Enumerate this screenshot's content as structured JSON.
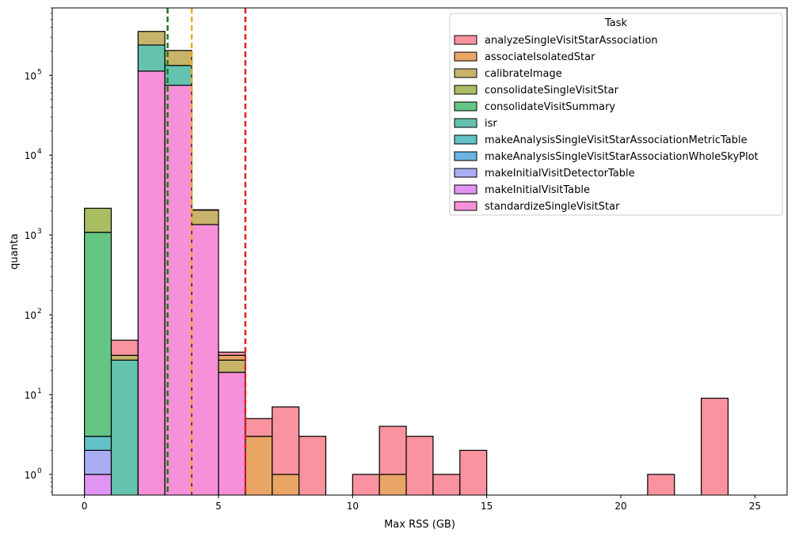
{
  "chart_data": {
    "type": "bar",
    "subtype": "stacked-histogram",
    "xlabel": "Max RSS (GB)",
    "ylabel": "quanta",
    "yscale": "log",
    "xlim": [
      -1.2,
      26.2
    ],
    "ylim": [
      0.55,
      700000
    ],
    "bin_width": 1,
    "x_ticks": [
      0,
      5,
      10,
      15,
      20,
      25
    ],
    "y_ticks": [
      {
        "value": 1,
        "label": "10",
        "exp": "0"
      },
      {
        "value": 10,
        "label": "10",
        "exp": "1"
      },
      {
        "value": 100,
        "label": "10",
        "exp": "2"
      },
      {
        "value": 1000,
        "label": "10",
        "exp": "3"
      },
      {
        "value": 10000,
        "label": "10",
        "exp": "4"
      },
      {
        "value": 100000,
        "label": "10",
        "exp": "5"
      }
    ],
    "legend": {
      "title": "Task",
      "placement": "top-right"
    },
    "series": [
      {
        "name": "analyzeSingleVisitStarAssociation",
        "color": "#f8939f"
      },
      {
        "name": "associateIsolatedStar",
        "color": "#e8a566"
      },
      {
        "name": "calibrateImage",
        "color": "#c8b36a"
      },
      {
        "name": "consolidateSingleVisitStar",
        "color": "#a9bd62"
      },
      {
        "name": "consolidateVisitSummary",
        "color": "#64c682"
      },
      {
        "name": "isr",
        "color": "#64c2ae"
      },
      {
        "name": "makeAnalysisSingleVisitStarAssociationMetricTable",
        "color": "#64c1c5"
      },
      {
        "name": "makeAnalysisSingleVisitStarAssociationWholeSkyPlot",
        "color": "#6cb4e3"
      },
      {
        "name": "makeInitialVisitDetectorTable",
        "color": "#a9aef4"
      },
      {
        "name": "makeInitialVisitTable",
        "color": "#e195f3"
      },
      {
        "name": "standardizeSingleVisitStar",
        "color": "#f790d8"
      }
    ],
    "stacks": [
      {
        "x0": 0,
        "segments": [
          {
            "series": "makeInitialVisitTable",
            "value": 1
          },
          {
            "series": "makeInitialVisitDetectorTable",
            "value": 1
          },
          {
            "series": "makeAnalysisSingleVisitStarAssociationMetricTable",
            "value": 1
          },
          {
            "series": "consolidateVisitSummary",
            "value": 1077
          },
          {
            "series": "consolidateSingleVisitStar",
            "value": 1080
          }
        ]
      },
      {
        "x0": 1,
        "segments": [
          {
            "series": "isr",
            "value": 27
          },
          {
            "series": "associateIsolatedStar",
            "value": 0
          },
          {
            "series": "calibrateImage",
            "value": 4
          },
          {
            "series": "analyzeSingleVisitStarAssociation",
            "value": 17
          }
        ]
      },
      {
        "x0": 2,
        "segments": [
          {
            "series": "standardizeSingleVisitStar",
            "value": 113000
          },
          {
            "series": "isr",
            "value": 127000
          },
          {
            "series": "calibrateImage",
            "value": 115000
          }
        ]
      },
      {
        "x0": 3,
        "segments": [
          {
            "series": "standardizeSingleVisitStar",
            "value": 75000
          },
          {
            "series": "isr",
            "value": 58000
          },
          {
            "series": "calibrateImage",
            "value": 72000
          }
        ]
      },
      {
        "x0": 4,
        "segments": [
          {
            "series": "standardizeSingleVisitStar",
            "value": 1350
          },
          {
            "series": "calibrateImage",
            "value": 700
          },
          {
            "series": "analyzeSingleVisitStarAssociation",
            "value": 20
          }
        ]
      },
      {
        "x0": 5,
        "segments": [
          {
            "series": "standardizeSingleVisitStar",
            "value": 19
          },
          {
            "series": "calibrateImage",
            "value": 8
          },
          {
            "series": "associateIsolatedStar",
            "value": 4
          },
          {
            "series": "analyzeSingleVisitStarAssociation",
            "value": 3
          }
        ]
      },
      {
        "x0": 6,
        "segments": [
          {
            "series": "associateIsolatedStar",
            "value": 3
          },
          {
            "series": "analyzeSingleVisitStarAssociation",
            "value": 2
          }
        ]
      },
      {
        "x0": 7,
        "segments": [
          {
            "series": "associateIsolatedStar",
            "value": 1
          },
          {
            "series": "analyzeSingleVisitStarAssociation",
            "value": 6
          }
        ]
      },
      {
        "x0": 8,
        "segments": [
          {
            "series": "analyzeSingleVisitStarAssociation",
            "value": 3
          }
        ]
      },
      {
        "x0": 10,
        "segments": [
          {
            "series": "analyzeSingleVisitStarAssociation",
            "value": 1
          }
        ]
      },
      {
        "x0": 11,
        "segments": [
          {
            "series": "associateIsolatedStar",
            "value": 1
          },
          {
            "series": "analyzeSingleVisitStarAssociation",
            "value": 3
          }
        ]
      },
      {
        "x0": 12,
        "segments": [
          {
            "series": "analyzeSingleVisitStarAssociation",
            "value": 3
          }
        ]
      },
      {
        "x0": 13,
        "segments": [
          {
            "series": "analyzeSingleVisitStarAssociation",
            "value": 1
          }
        ]
      },
      {
        "x0": 14,
        "segments": [
          {
            "series": "analyzeSingleVisitStarAssociation",
            "value": 2
          }
        ]
      },
      {
        "x0": 21,
        "segments": [
          {
            "series": "analyzeSingleVisitStarAssociation",
            "value": 1
          }
        ]
      },
      {
        "x0": 23,
        "segments": [
          {
            "series": "analyzeSingleVisitStarAssociation",
            "value": 9
          }
        ]
      }
    ],
    "reference_lines": [
      {
        "x": 3.1,
        "color": "#1a7a1a"
      },
      {
        "x": 4.0,
        "color": "#f5a623"
      },
      {
        "x": 6.0,
        "color": "#e02020"
      }
    ]
  }
}
